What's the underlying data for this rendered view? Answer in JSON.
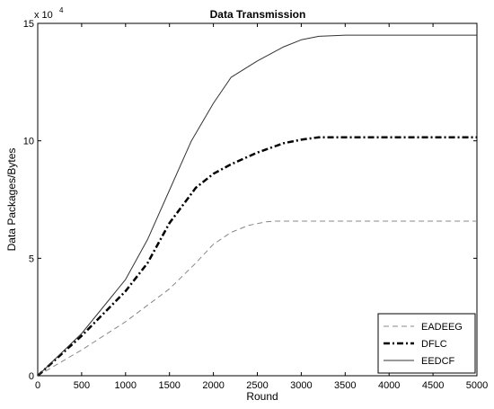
{
  "chart_data": {
    "type": "line",
    "title": "Data Transmission",
    "xlabel": "Round",
    "ylabel": "Data Packages/Bytes",
    "y_exponent_label": {
      "base": "x 10",
      "exponent": "4"
    },
    "xlim": [
      0,
      5000
    ],
    "ylim": [
      0,
      15
    ],
    "xticks": [
      0,
      500,
      1000,
      1500,
      2000,
      2500,
      3000,
      3500,
      4000,
      4500,
      5000
    ],
    "yticks": [
      0,
      5,
      10,
      15
    ],
    "grid": false,
    "legend_position": "bottom-right",
    "series": [
      {
        "name": "EADEEG",
        "style": "dashed",
        "color": "#888888",
        "x": [
          0,
          500,
          1000,
          1500,
          1800,
          2000,
          2200,
          2400,
          2600,
          2700,
          3000,
          4000,
          5000
        ],
        "y": [
          0,
          1.1,
          2.3,
          3.7,
          4.8,
          5.6,
          6.1,
          6.4,
          6.55,
          6.58,
          6.58,
          6.58,
          6.58
        ]
      },
      {
        "name": "DFLC",
        "style": "dashdot",
        "color": "#000000",
        "x": [
          0,
          500,
          1000,
          1250,
          1500,
          1800,
          2000,
          2200,
          2500,
          2800,
          3000,
          3200,
          3500,
          4000,
          5000
        ],
        "y": [
          0,
          1.7,
          3.6,
          4.8,
          6.5,
          8.0,
          8.6,
          9.0,
          9.5,
          9.9,
          10.05,
          10.15,
          10.15,
          10.15,
          10.15
        ]
      },
      {
        "name": "EEDCF",
        "style": "solid",
        "color": "#333333",
        "x": [
          0,
          500,
          1000,
          1250,
          1500,
          1750,
          2000,
          2200,
          2500,
          2800,
          3000,
          3200,
          3500,
          4000,
          5000
        ],
        "y": [
          0,
          1.8,
          4.1,
          5.8,
          7.9,
          10.0,
          11.6,
          12.7,
          13.4,
          14.0,
          14.3,
          14.45,
          14.5,
          14.5,
          14.5
        ]
      }
    ]
  }
}
